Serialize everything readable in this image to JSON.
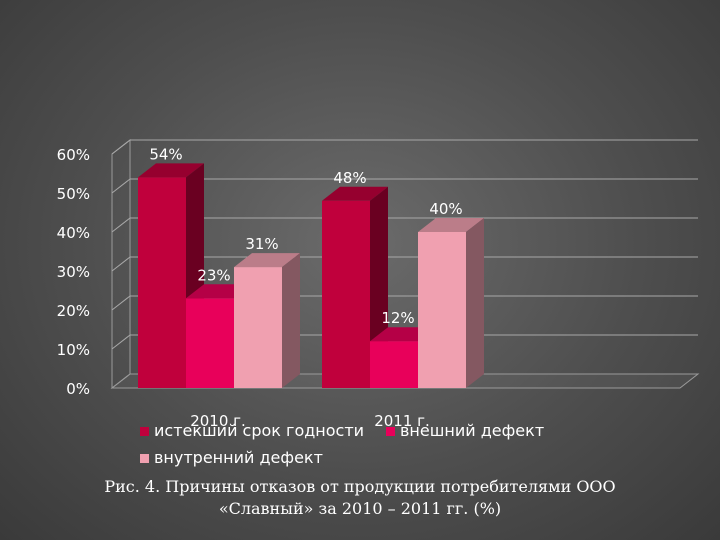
{
  "chart_data": {
    "type": "bar",
    "categories": [
      "2010 г.",
      "2011 г."
    ],
    "series": [
      {
        "name": "истекший срок годности",
        "values": [
          54,
          48
        ],
        "color": "#c0003c"
      },
      {
        "name": "внешний дефект",
        "values": [
          23,
          12
        ],
        "color": "#e8005a"
      },
      {
        "name": "внутренний дефект",
        "values": [
          31,
          40
        ],
        "color": "#f0a0b0"
      }
    ],
    "data_labels": [
      "54%",
      "23%",
      "31%",
      "48%",
      "12%",
      "40%"
    ],
    "yticks": [
      "0%",
      "10%",
      "20%",
      "30%",
      "40%",
      "50%",
      "60%"
    ],
    "ylim": [
      0,
      60
    ],
    "grid": true,
    "three_d": true,
    "legend_position": "bottom"
  },
  "caption": {
    "line1": "Рис. 4. Причины  отказов от продукции потребителями  ООО",
    "line2": "«Славный» за 2010 – 2011 гг.  (%)"
  }
}
